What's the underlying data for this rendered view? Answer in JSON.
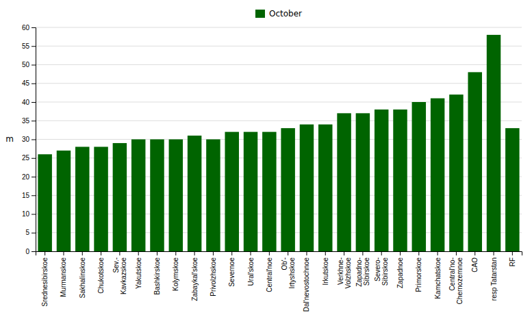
{
  "chart_data": {
    "type": "bar",
    "categories": [
      "Srednesibirskoe",
      "Murmanskoe",
      "Sakhalinskoe",
      "Chukotskoe",
      "Sev.-\nKavkazskoe",
      "Yakutskoe",
      "Bashkirskoe",
      "Kolymskoe",
      "Zabaykal'skoe",
      "Privolzhskoe",
      "Severnoe",
      "Ural'skoe",
      "Central'noe",
      "Ob'-\nIrtyshskoe",
      "Dal'nevostochnoe",
      "Irkutskoe",
      "Verkhne-\nVolzhskoe",
      "Zapadno-\nSibirskoe",
      "Severo-\nSibirskoe",
      "Zapadnoe",
      "Primorskoe",
      "Kamchatskoe",
      "Central'no-\nChernozemnoe",
      "CAO",
      "resp Tatarstan",
      "RF"
    ],
    "series": [
      {
        "name": "October",
        "color": "#006400",
        "values": [
          26,
          27,
          28,
          28,
          29,
          30,
          30,
          30,
          31,
          30,
          32,
          32,
          32,
          33,
          34,
          34,
          37,
          37,
          38,
          38,
          40,
          41,
          42,
          48,
          58,
          33
        ]
      }
    ],
    "y_label": "m",
    "ylim": [
      0,
      60
    ],
    "yticks": [
      0,
      5,
      10,
      15,
      20,
      25,
      30,
      35,
      40,
      45,
      50,
      55,
      60
    ],
    "grid": true,
    "legend": "top"
  }
}
